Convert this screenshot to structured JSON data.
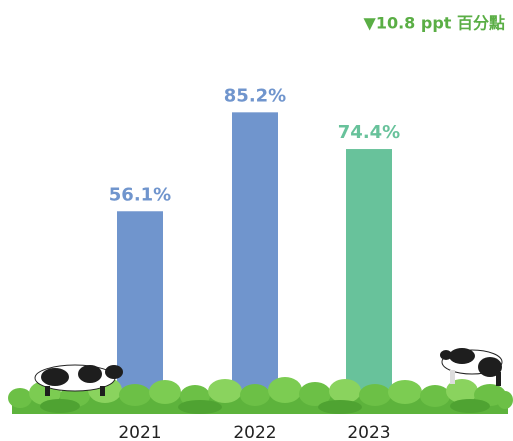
{
  "chart_data": {
    "type": "bar",
    "annotation": "▼10.8 ppt 百分點",
    "categories": [
      "2021",
      "2022",
      "2023"
    ],
    "values": [
      56.1,
      85.2,
      74.4
    ],
    "value_labels": [
      "56.1%",
      "85.2%",
      "74.4%"
    ],
    "colors": [
      "#7095cd",
      "#7095cd",
      "#68c29b"
    ],
    "annotation_color": "#5aae45"
  }
}
